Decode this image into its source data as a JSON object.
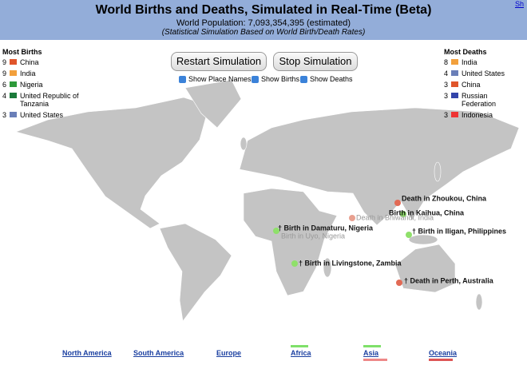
{
  "header": {
    "title": "World Births and Deaths, Simulated in Real-Time (Beta)",
    "population": "World Population: 7,093,354,395 (estimated)",
    "subtitle": "(Statistical Simulation Based on World Birth/Death Rates)",
    "corner_link": "Sh"
  },
  "buttons": [
    "Restart Simulation",
    "Stop Simulation"
  ],
  "checkboxes": [
    "Show Place Names",
    "Show Births",
    "Show Deaths"
  ],
  "most_births": {
    "title": "Most Births",
    "items": [
      {
        "count": 9,
        "name": "China"
      },
      {
        "count": 9,
        "name": "India"
      },
      {
        "count": 6,
        "name": "Nigeria"
      },
      {
        "count": 4,
        "name": "United Republic of Tanzania"
      },
      {
        "count": 3,
        "name": "United States"
      }
    ]
  },
  "most_deaths": {
    "title": "Most Deaths",
    "items": [
      {
        "count": 8,
        "name": "India"
      },
      {
        "count": 4,
        "name": "United States"
      },
      {
        "count": 3,
        "name": "China"
      },
      {
        "count": 3,
        "name": "Russian Federation"
      },
      {
        "count": 3,
        "name": "Indonesia"
      }
    ]
  },
  "events": [
    "† Birth in Damaturu, Nigeria",
    "Birth in Uyo, Nigeria",
    "Death in Zhoukou, China",
    "Birth in Kaihua, China",
    "Death in Bhiwandi, India",
    "† Birth in Iligan, Philippines",
    "† Birth in Livingstone, Zambia",
    "† Death in Perth, Australia"
  ],
  "regions": [
    "North America",
    "South America",
    "Europe",
    "Africa",
    "Asia",
    "Oceania"
  ]
}
